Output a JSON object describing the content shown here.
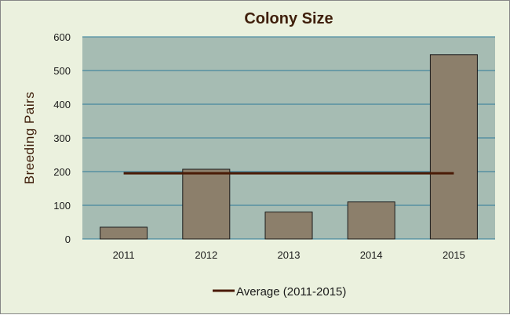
{
  "chart_data": {
    "type": "bar",
    "title": "Colony Size",
    "xlabel": "",
    "ylabel": "Breeding Pairs",
    "categories": [
      "2011",
      "2012",
      "2013",
      "2014",
      "2015"
    ],
    "series": [
      {
        "values": [
          35,
          207,
          80,
          110,
          547
        ]
      }
    ],
    "average_line": {
      "name": "Average (2011-2015)",
      "value": 195,
      "color": "#4a1a05"
    },
    "ylim": [
      0,
      600
    ],
    "yticks": [
      0,
      100,
      200,
      300,
      400,
      500,
      600
    ],
    "grid": true,
    "legend_position": "bottom",
    "colors": {
      "plot_background": "#a6bcb3",
      "bar_fill": "#8c7f6b",
      "bar_stroke": "#1a1a1a",
      "gridline": "#2e7a9a",
      "chart_background": "#ebf1de"
    }
  }
}
